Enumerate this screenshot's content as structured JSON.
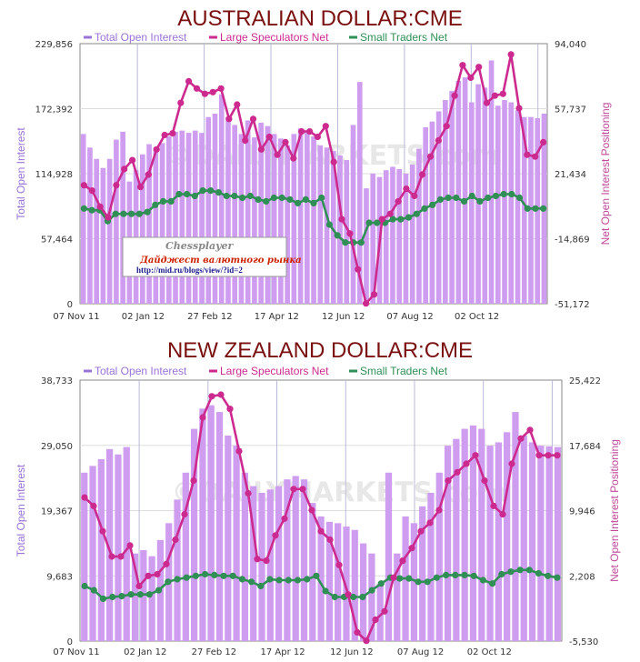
{
  "chart_data": [
    {
      "type": "bar+line",
      "title": "AUSTRALIAN DOLLAR:CME",
      "legend": [
        "Total Open Interest",
        "Large Speculators Net",
        "Small Traders Net"
      ],
      "legend_position": "top",
      "ylabel_left": "Total Open Interest",
      "ylabel_right": "Net Open Interest Positioning",
      "left_ticks": [
        "0",
        "57,464",
        "114,928",
        "172,392",
        "229,856"
      ],
      "right_ticks": [
        "-51,172",
        "-14,869",
        "21,434",
        "57,737",
        "94,040"
      ],
      "x_ticks": [
        "07 Nov 11",
        "02 Jan 12",
        "27 Feb 12",
        "17 Apr 12",
        "12 Jun 12",
        "07 Aug 12",
        "02 Oct 12"
      ],
      "ylim_left": [
        0,
        229856
      ],
      "ylim_right": [
        -51172,
        94040
      ],
      "watermark": "©DAILYMARKETS.com",
      "open_interest": [
        150000,
        138000,
        128000,
        120000,
        128000,
        145000,
        152000,
        108000,
        118000,
        132000,
        141000,
        138000,
        142000,
        148000,
        152000,
        153000,
        151000,
        153000,
        151000,
        165000,
        168000,
        185000,
        165000,
        158000,
        150000,
        162000,
        147000,
        160000,
        157000,
        150000,
        146000,
        140000,
        150000,
        155000,
        151000,
        148000,
        140000,
        138000,
        135000,
        131000,
        127000,
        158000,
        196000,
        102000,
        115000,
        112000,
        118000,
        121000,
        119000,
        115000,
        123000,
        137000,
        156000,
        161000,
        170000,
        180000,
        188000,
        197000,
        200000,
        178000,
        194000,
        191000,
        215000,
        175000,
        180000,
        178000,
        171000,
        165000,
        165000,
        164000,
        168000
      ],
      "large_speculators": [
        15000,
        12000,
        3000,
        -3000,
        15000,
        24000,
        29000,
        14000,
        21000,
        35000,
        43000,
        44000,
        61000,
        73000,
        69000,
        66000,
        67000,
        69000,
        52000,
        60000,
        40000,
        52000,
        35000,
        42000,
        32000,
        39000,
        30000,
        45000,
        45000,
        42000,
        48000,
        28000,
        -4000,
        -12000,
        -32000,
        -51000,
        -46000,
        -4000,
        -1000,
        6000,
        13000,
        9000,
        21000,
        31000,
        40000,
        48000,
        65000,
        82000,
        75000,
        81000,
        61000,
        65000,
        66000,
        88000,
        58000,
        32000,
        31000,
        39000
      ],
      "small_traders": [
        2000,
        1000,
        1000,
        -5000,
        -1000,
        -1000,
        -1000,
        -1000,
        0,
        4000,
        6000,
        6000,
        10000,
        10000,
        9000,
        12000,
        12000,
        11000,
        9000,
        9000,
        8000,
        9000,
        7000,
        6000,
        8000,
        8000,
        7000,
        5000,
        7000,
        5000,
        8000,
        -7000,
        -13000,
        -17000,
        -17000,
        -17000,
        -6000,
        -6000,
        -6000,
        -4000,
        -4000,
        -3000,
        -1000,
        2000,
        4000,
        7000,
        8000,
        8000,
        6000,
        9000,
        6000,
        8000,
        9000,
        10000,
        10000,
        8000,
        2000,
        2000,
        2000
      ]
    },
    {
      "type": "bar+line",
      "title": "NEW ZEALAND DOLLAR:CME",
      "legend": [
        "Total Open Interest",
        "Large Speculators Net",
        "Small Traders Net"
      ],
      "legend_position": "top",
      "ylabel_left": "Total Open Interest",
      "ylabel_right": "Net Open Interest Positioning",
      "left_ticks": [
        "0",
        "9,683",
        "19,367",
        "29,050",
        "38,733"
      ],
      "right_ticks": [
        "-5,530",
        "2,208",
        "9,946",
        "17,684",
        "25,422"
      ],
      "x_ticks": [
        "07 Nov 11",
        "02 Jan 12",
        "27 Feb 12",
        "17 Apr 12",
        "12 Jun 12",
        "07 Aug 12",
        "02 Oct 12"
      ],
      "ylim_left": [
        0,
        38733
      ],
      "ylim_right": [
        -5530,
        25422
      ],
      "watermark": "©DAILYMARKETS.com",
      "open_interest": [
        25000,
        26000,
        27000,
        28500,
        27700,
        28800,
        13000,
        13500,
        12600,
        15000,
        17500,
        21000,
        25000,
        31500,
        34500,
        35000,
        34000,
        30500,
        29000,
        25000,
        23000,
        22000,
        22500,
        23000,
        24000,
        24500,
        24000,
        20500,
        18500,
        17700,
        17500,
        17000,
        16500,
        14500,
        13000,
        8500,
        25000,
        13000,
        18500,
        17500,
        20000,
        22000,
        25000,
        29000,
        30000,
        31500,
        32000,
        31500,
        29000,
        29500,
        31000,
        34000,
        30500,
        29500,
        29000,
        28900,
        28800
      ],
      "large_speculators": [
        11500,
        10500,
        7500,
        4500,
        4500,
        5800,
        1000,
        2200,
        2400,
        3600,
        6500,
        9500,
        13500,
        21000,
        23500,
        23700,
        22000,
        17000,
        12000,
        4200,
        4000,
        7000,
        9000,
        12500,
        12500,
        10000,
        7500,
        6500,
        3500,
        0,
        -4500,
        -5500,
        -3000,
        -2000,
        2000,
        4000,
        5500,
        7500,
        8500,
        10000,
        13500,
        14500,
        15500,
        16500,
        13500,
        10500,
        9500,
        15500,
        18500,
        19500,
        16500,
        16500,
        16500
      ],
      "small_traders": [
        1000,
        500,
        -500,
        -300,
        -200,
        0,
        0,
        0,
        500,
        1500,
        1800,
        2000,
        2200,
        2400,
        2300,
        2200,
        2200,
        1800,
        1500,
        1000,
        1800,
        1700,
        1700,
        1700,
        1800,
        2200,
        400,
        -300,
        -300,
        -300,
        -300,
        500,
        1300,
        2000,
        1900,
        1900,
        1500,
        1500,
        2000,
        2300,
        2300,
        2300,
        2200,
        1700,
        1300,
        2400,
        2700,
        2900,
        2900,
        2500,
        2200,
        2000
      ]
    }
  ]
}
